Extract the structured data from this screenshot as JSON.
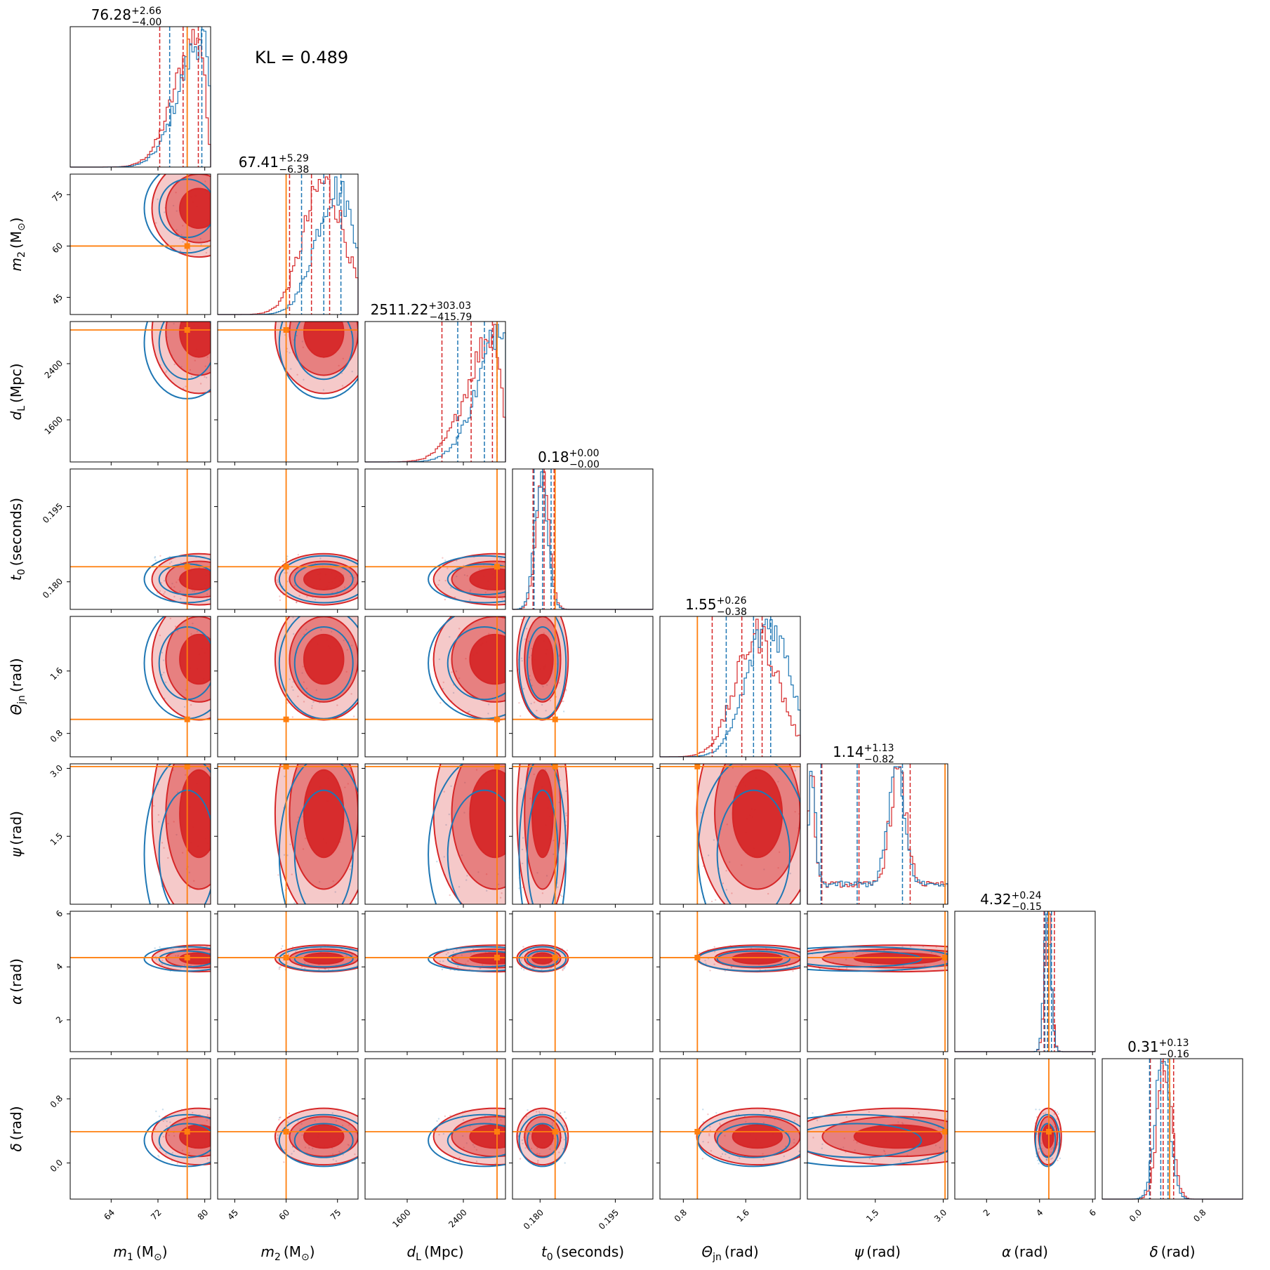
{
  "annotation": {
    "kl_text": "KL = 0.489"
  },
  "colors": {
    "red": "#d62728",
    "blue": "#1f77b4",
    "truth": "#ff7f0e"
  },
  "chart_data": {
    "type": "corner",
    "params": [
      {
        "key": "m1",
        "label_main": "m",
        "label_sub": "1",
        "label_unit": "(M",
        "label_unit_sub": "⊙",
        "label_end": ")",
        "range": [
          57,
          81
        ],
        "ticks": [
          64,
          72,
          80
        ],
        "tick_labels": [
          "64",
          "72",
          "80"
        ],
        "median": 76.28,
        "plus": "+2.66",
        "minus": "−4.00",
        "median_text": "76.28",
        "truth": 77.0,
        "red_q": [
          72.3,
          76.3,
          78.9
        ],
        "blue_q": [
          74.0,
          77.0,
          79.5
        ],
        "peak": 79.0,
        "width": 4.0,
        "skew": "left"
      },
      {
        "key": "m2",
        "label_main": "m",
        "label_sub": "2",
        "label_unit": "(M",
        "label_unit_sub": "⊙",
        "label_end": ")",
        "range": [
          40,
          81
        ],
        "ticks": [
          45,
          60,
          75
        ],
        "tick_labels": [
          "45",
          "60",
          "75"
        ],
        "median": 67.41,
        "plus": "+5.29",
        "minus": "−6.38",
        "median_text": "67.41",
        "truth": 60.0,
        "red_q": [
          61.0,
          67.4,
          72.7
        ],
        "blue_q": [
          64.5,
          71.0,
          76.0
        ],
        "peak": 71.0,
        "width": 6.0,
        "skew": "none"
      },
      {
        "key": "dL",
        "label_main": "d",
        "label_sub": "L",
        "label_unit": "(Mpc)",
        "label_unit_sub": "",
        "label_end": "",
        "range": [
          1000,
          3000
        ],
        "ticks": [
          1600,
          2400
        ],
        "tick_labels": [
          "1600",
          "2400"
        ],
        "median": 2511.22,
        "plus": "+303.03",
        "minus": "−415.79",
        "median_text": "2511.22",
        "truth": 2880,
        "red_q": [
          2095,
          2511,
          2814
        ],
        "blue_q": [
          2320,
          2700,
          2880
        ],
        "peak": 2850,
        "width": 380,
        "skew": "left"
      },
      {
        "key": "t0",
        "label_main": "t",
        "label_sub": "0",
        "label_unit": "(seconds)",
        "label_end": "",
        "label_unit_sub": "",
        "range": [
          0.1745,
          0.2025
        ],
        "ticks": [
          0.18,
          0.195
        ],
        "tick_labels": [
          "0.180",
          "0.195"
        ],
        "median": 0.18,
        "plus": "+0.00",
        "minus": "−0.00",
        "median_text": "0.18",
        "truth": 0.183,
        "red_q": [
          0.1786,
          0.1808,
          0.1828
        ],
        "blue_q": [
          0.1788,
          0.1805,
          0.1822
        ],
        "peak": 0.1805,
        "width": 0.0013,
        "skew": "none"
      },
      {
        "key": "thetajn",
        "label_main": "Θ",
        "label_sub": "jn",
        "label_unit": "(rad)",
        "label_unit_sub": "",
        "label_end": "",
        "range": [
          0.5,
          2.3
        ],
        "ticks": [
          0.8,
          1.6
        ],
        "tick_labels": [
          "0.8",
          "1.6"
        ],
        "median": 1.55,
        "plus": "+0.26",
        "minus": "−0.38",
        "median_text": "1.55",
        "truth": 0.98,
        "red_q": [
          1.17,
          1.55,
          1.81
        ],
        "blue_q": [
          1.35,
          1.7,
          1.92
        ],
        "peak": 1.75,
        "width": 0.28,
        "skew": "none"
      },
      {
        "key": "psi",
        "label_main": "ψ",
        "label_sub": "",
        "label_unit": "(rad)",
        "label_unit_sub": "",
        "label_end": "",
        "range": [
          0.0,
          3.1
        ],
        "ticks": [
          1.5,
          3.0
        ],
        "tick_labels": [
          "1.5",
          "3.0"
        ],
        "median": 1.14,
        "plus": "+1.13",
        "minus": "−0.82",
        "median_text": "1.14",
        "truth": 3.04,
        "red_q": [
          0.32,
          1.14,
          2.27
        ],
        "blue_q": [
          0.3,
          1.1,
          2.1
        ],
        "peak": 2.0,
        "width": 0.3,
        "skew": "bimodal"
      },
      {
        "key": "alpha",
        "label_main": "α",
        "label_sub": "",
        "label_unit": "(rad)",
        "label_unit_sub": "",
        "label_end": "",
        "range": [
          0.8,
          6.1
        ],
        "ticks": [
          2,
          4,
          6
        ],
        "tick_labels": [
          "2",
          "4",
          "6"
        ],
        "median": 4.32,
        "plus": "+0.24",
        "minus": "−0.15",
        "median_text": "4.32",
        "truth": 4.35,
        "red_q": [
          4.17,
          4.32,
          4.56
        ],
        "blue_q": [
          4.2,
          4.3,
          4.45
        ],
        "peak": 4.32,
        "width": 0.13,
        "skew": "none"
      },
      {
        "key": "delta",
        "label_main": "δ",
        "label_sub": "",
        "label_unit": "(rad)",
        "label_unit_sub": "",
        "label_end": "",
        "range": [
          -0.45,
          1.3
        ],
        "ticks": [
          0.0,
          0.8
        ],
        "tick_labels": [
          "0.0",
          "0.8"
        ],
        "median": 0.31,
        "plus": "+0.13",
        "minus": "−0.16",
        "median_text": "0.31",
        "truth": 0.39,
        "red_q": [
          0.15,
          0.31,
          0.44
        ],
        "blue_q": [
          0.14,
          0.28,
          0.37
        ],
        "peak": 0.33,
        "width": 0.09,
        "skew": "none"
      }
    ],
    "series": [
      {
        "name": "",
        "color": "#d62728"
      },
      {
        "name": "",
        "color": "#1f77b4"
      }
    ],
    "truth_color": "#ff7f0e"
  }
}
